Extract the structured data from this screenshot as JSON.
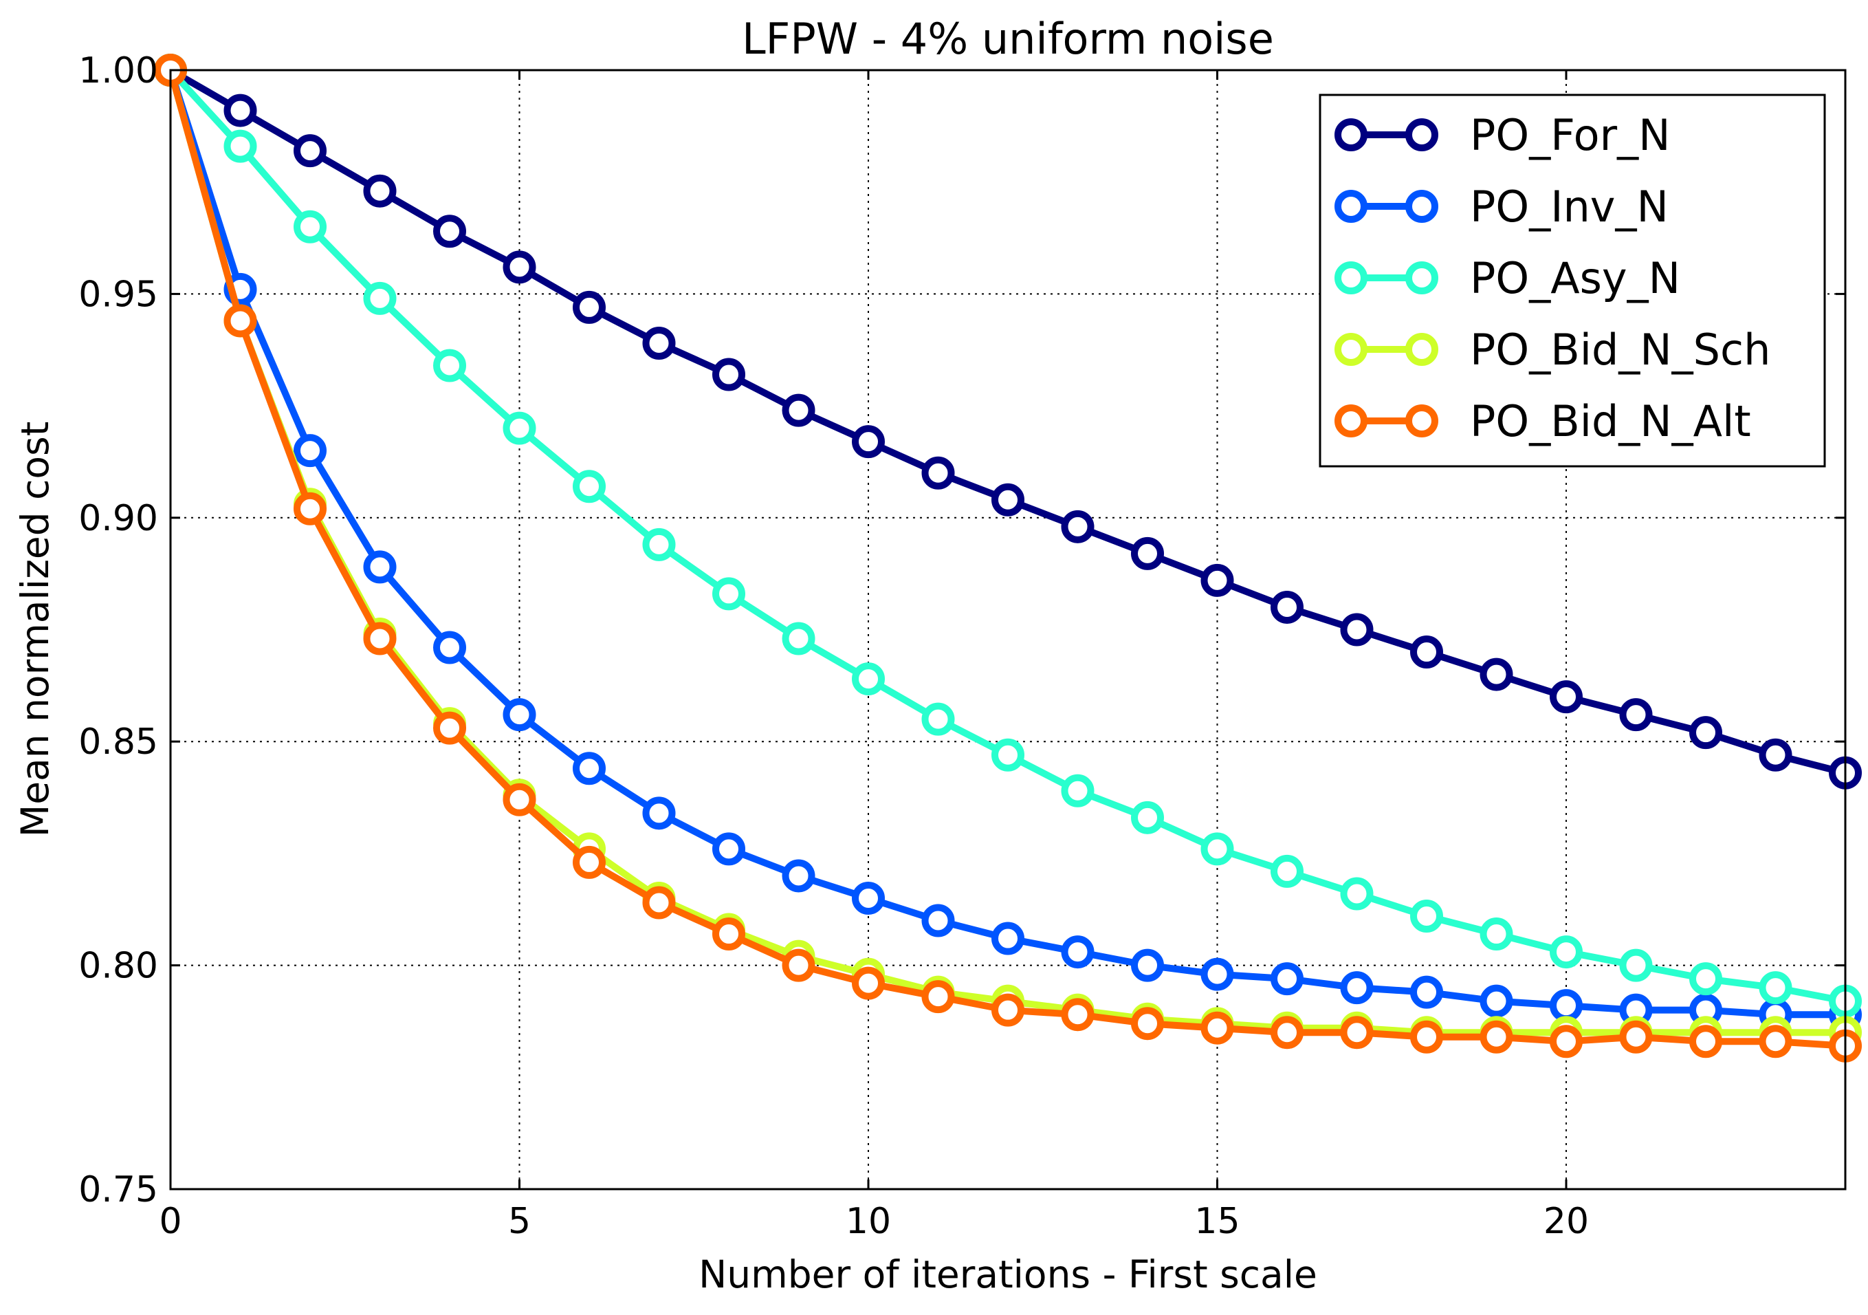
{
  "chart_data": {
    "type": "line",
    "title": "LFPW - 4% uniform noise",
    "xlabel": "Number of iterations - First scale",
    "ylabel": "Mean normalized cost",
    "xlim": [
      0,
      24
    ],
    "ylim": [
      0.75,
      1.0
    ],
    "xticks": [
      0,
      5,
      10,
      15,
      20
    ],
    "xtick_labels": [
      "0",
      "5",
      "10",
      "15",
      "20"
    ],
    "yticks": [
      0.75,
      0.8,
      0.85,
      0.9,
      0.95,
      1.0
    ],
    "ytick_labels": [
      "0.75",
      "0.80",
      "0.85",
      "0.90",
      "0.95",
      "1.00"
    ],
    "grid": true,
    "legend_position": "top-right",
    "x": [
      0,
      1,
      2,
      3,
      4,
      5,
      6,
      7,
      8,
      9,
      10,
      11,
      12,
      13,
      14,
      15,
      16,
      17,
      18,
      19,
      20,
      21,
      22,
      23,
      24
    ],
    "series": [
      {
        "name": "PO_For_N",
        "color": "#000080",
        "values": [
          1.0,
          0.991,
          0.982,
          0.973,
          0.964,
          0.956,
          0.947,
          0.939,
          0.932,
          0.924,
          0.917,
          0.91,
          0.904,
          0.898,
          0.892,
          0.886,
          0.88,
          0.875,
          0.87,
          0.865,
          0.86,
          0.856,
          0.852,
          0.847,
          0.843
        ]
      },
      {
        "name": "PO_Inv_N",
        "color": "#0055FF",
        "values": [
          1.0,
          0.951,
          0.915,
          0.889,
          0.871,
          0.856,
          0.844,
          0.834,
          0.826,
          0.82,
          0.815,
          0.81,
          0.806,
          0.803,
          0.8,
          0.798,
          0.797,
          0.795,
          0.794,
          0.792,
          0.791,
          0.79,
          0.79,
          0.789,
          0.789
        ]
      },
      {
        "name": "PO_Asy_N",
        "color": "#29FFCE",
        "values": [
          1.0,
          0.983,
          0.965,
          0.949,
          0.934,
          0.92,
          0.907,
          0.894,
          0.883,
          0.873,
          0.864,
          0.855,
          0.847,
          0.839,
          0.833,
          0.826,
          0.821,
          0.816,
          0.811,
          0.807,
          0.803,
          0.8,
          0.797,
          0.795,
          0.792
        ]
      },
      {
        "name": "PO_Bid_N_Sch",
        "color": "#CEFF29",
        "values": [
          1.0,
          0.944,
          0.903,
          0.874,
          0.854,
          0.838,
          0.826,
          0.815,
          0.808,
          0.802,
          0.798,
          0.794,
          0.792,
          0.79,
          0.788,
          0.787,
          0.786,
          0.786,
          0.785,
          0.785,
          0.785,
          0.785,
          0.785,
          0.785,
          0.785
        ]
      },
      {
        "name": "PO_Bid_N_Alt",
        "color": "#FF6800",
        "values": [
          1.0,
          0.944,
          0.902,
          0.873,
          0.853,
          0.837,
          0.823,
          0.814,
          0.807,
          0.8,
          0.796,
          0.793,
          0.79,
          0.789,
          0.787,
          0.786,
          0.785,
          0.785,
          0.784,
          0.784,
          0.783,
          0.784,
          0.783,
          0.783,
          0.782
        ]
      }
    ]
  }
}
